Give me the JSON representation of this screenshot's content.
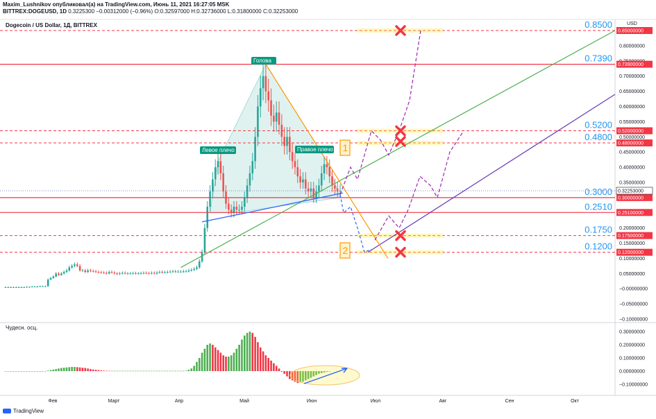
{
  "header": {
    "line1": "Maxim_Lushnikov опубликовал(а) на TradingView.com, Июнь 11, 2021 16:27:05 MSK",
    "line2_symbol": "BITTREX:DOGEUSD, 1D",
    "line2_values": "0.3225300 −0.00312000 (−0.96%) O:0.32597000 H:0.32736000 L:0.31800000 C:0.32253000"
  },
  "symbol_title": "Dogecoin / US Dollar, 1Д, BITTREX",
  "currency": "USD",
  "oscillator_title": "Чудесн. осц.",
  "brand": "TradingView",
  "chart_data": {
    "type": "candlestick",
    "price_axis_ticks": [
      "0.85000000",
      "0.80000000",
      "0.75000000",
      "0.70000000",
      "0.65000000",
      "0.60000000",
      "0.55000000",
      "0.50000000",
      "0.45000000",
      "0.40000000",
      "0.35000000",
      "0.30000000",
      "0.25000000",
      "0.20000000",
      "0.15000000",
      "0.10000000",
      "0.05000000",
      "−0.00000000",
      "−0.05000000",
      "−0.10000000"
    ],
    "price_ticks": [
      0.85,
      0.8,
      0.75,
      0.7,
      0.65,
      0.6,
      0.55,
      0.5,
      0.45,
      0.4,
      0.35,
      0.3,
      0.25,
      0.2,
      0.15,
      0.1,
      0.05,
      0,
      -0.05,
      -0.1
    ],
    "osc_axis_ticks": [
      "0.30000000",
      "0.20000000",
      "0.10000000",
      "0.00000000",
      "−0.10000000"
    ],
    "osc_ticks": [
      0.3,
      0.2,
      0.1,
      0,
      -0.1
    ],
    "months": [
      "Фев",
      "Март",
      "Апр",
      "Май",
      "Июн",
      "Июл",
      "Авг",
      "Сен",
      "Окт"
    ],
    "levels": [
      {
        "label": "0.8500",
        "box": "0.85000000",
        "value": 0.85
      },
      {
        "label": "0.7390",
        "box": "0.73900000",
        "value": 0.739
      },
      {
        "label": "0.5200",
        "box": "0.52000000",
        "value": 0.52
      },
      {
        "label": "0.4800",
        "box": "0.48000000",
        "value": 0.48
      },
      {
        "label": "0.3000",
        "box": "0.30000000",
        "value": 0.3
      },
      {
        "label": "0.2510",
        "box": "0.25100000",
        "value": 0.251
      },
      {
        "label": "0.1750",
        "box": "0.17500000",
        "value": 0.175
      },
      {
        "label": "0.1200",
        "box": "0.12000000",
        "value": 0.12
      }
    ],
    "current_price": {
      "box": "0.32253000",
      "value": 0.32253
    },
    "annotations": {
      "head": "Голова",
      "left_shoulder": "Левое плечо",
      "right_shoulder": "Правое плечо",
      "scenario_1": "1",
      "scenario_2": "2"
    },
    "price_closes": [
      0.005,
      0.005,
      0.005,
      0.005,
      0.005,
      0.005,
      0.005,
      0.005,
      0.006,
      0.006,
      0.007,
      0.007,
      0.007,
      0.008,
      0.008,
      0.008,
      0.03,
      0.035,
      0.04,
      0.05,
      0.045,
      0.05,
      0.055,
      0.06,
      0.07,
      0.075,
      0.08,
      0.075,
      0.06,
      0.06,
      0.055,
      0.06,
      0.058,
      0.057,
      0.055,
      0.054,
      0.053,
      0.052,
      0.05,
      0.055,
      0.053,
      0.05,
      0.048,
      0.05,
      0.052,
      0.05,
      0.05,
      0.05,
      0.051,
      0.05,
      0.05,
      0.051,
      0.052,
      0.051,
      0.05,
      0.052,
      0.05,
      0.053,
      0.055,
      0.054,
      0.054,
      0.055,
      0.056,
      0.057,
      0.056,
      0.056,
      0.056,
      0.057,
      0.057,
      0.06,
      0.062,
      0.065,
      0.07,
      0.09,
      0.12,
      0.2,
      0.27,
      0.32,
      0.36,
      0.4,
      0.42,
      0.38,
      0.32,
      0.28,
      0.26,
      0.25,
      0.27,
      0.26,
      0.26,
      0.27,
      0.3,
      0.34,
      0.38,
      0.42,
      0.5,
      0.6,
      0.66,
      0.7,
      0.65,
      0.62,
      0.57,
      0.55,
      0.58,
      0.54,
      0.5,
      0.47,
      0.5,
      0.45,
      0.42,
      0.4,
      0.37,
      0.35,
      0.36,
      0.33,
      0.32,
      0.33,
      0.3,
      0.32,
      0.34,
      0.38,
      0.41,
      0.4,
      0.37,
      0.34,
      0.33,
      0.32,
      0.3225
    ],
    "osc_values": [
      0,
      0,
      0,
      0,
      0,
      0,
      0,
      0,
      0,
      0,
      0,
      0,
      0,
      0,
      0,
      0,
      0.004,
      0.008,
      0.012,
      0.016,
      0.02,
      0.024,
      0.026,
      0.028,
      0.03,
      0.032,
      0.032,
      0.03,
      0.028,
      0.026,
      0.024,
      0.02,
      0.016,
      0.012,
      0.01,
      0.008,
      0.006,
      0.004,
      0.003,
      0.002,
      0.002,
      0.002,
      0.002,
      0.002,
      0.002,
      0.002,
      0.002,
      0.002,
      0.002,
      0.002,
      0.002,
      0.002,
      0.002,
      0.002,
      0.002,
      0.002,
      0.002,
      0.002,
      0.002,
      0.002,
      0.002,
      0.002,
      0.002,
      0.002,
      0.002,
      0.002,
      0.002,
      0.002,
      0.004,
      0.01,
      0.02,
      0.04,
      0.07,
      0.1,
      0.14,
      0.17,
      0.2,
      0.21,
      0.2,
      0.18,
      0.16,
      0.14,
      0.12,
      0.11,
      0.11,
      0.12,
      0.14,
      0.17,
      0.2,
      0.24,
      0.27,
      0.29,
      0.3,
      0.29,
      0.26,
      0.22,
      0.18,
      0.15,
      0.12,
      0.1,
      0.08,
      0.06,
      0.04,
      0.02,
      -0.005,
      -0.02,
      -0.04,
      -0.06,
      -0.07,
      -0.08,
      -0.09,
      -0.085,
      -0.08,
      -0.07,
      -0.06,
      -0.05,
      -0.04,
      -0.03,
      -0.02,
      -0.015,
      -0.01,
      -0.005,
      -0.002
    ]
  }
}
